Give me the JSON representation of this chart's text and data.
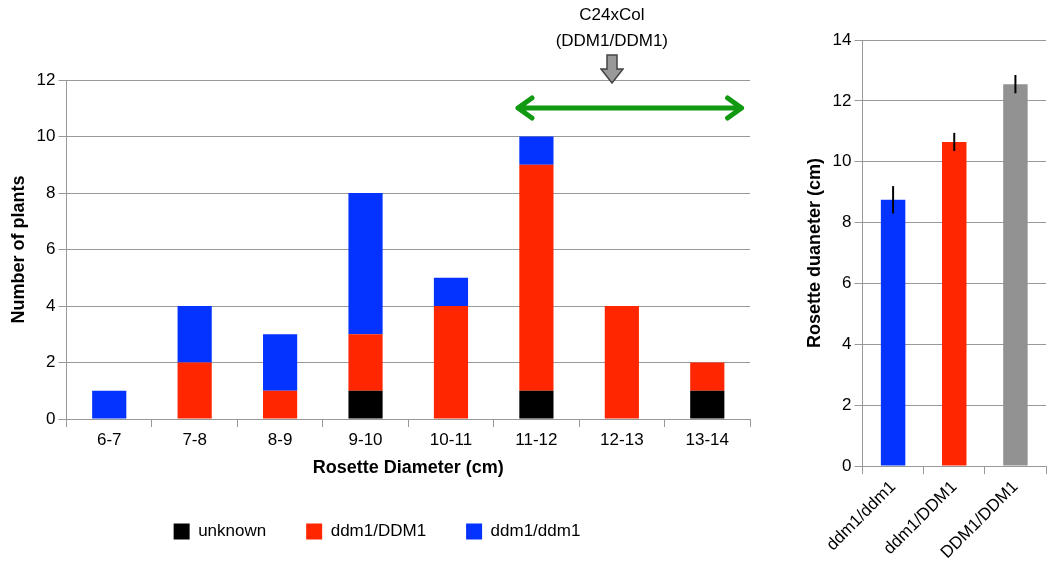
{
  "chart_data": [
    {
      "type": "bar",
      "stacked": true,
      "xlabel": "Rosette Diameter (cm)",
      "ylabel": "Number of plants",
      "categories": [
        "6-7",
        "7-8",
        "8-9",
        "9-10",
        "10-11",
        "11-12",
        "12-13",
        "13-14"
      ],
      "series": [
        {
          "name": "unknown",
          "color": "#000000",
          "values": [
            0,
            0,
            0,
            1,
            0,
            1,
            0,
            1
          ]
        },
        {
          "name": "ddm1/DDM1",
          "color": "#ff2600",
          "values": [
            0,
            2,
            1,
            2,
            4,
            8,
            4,
            1
          ]
        },
        {
          "name": "ddm1/ddm1",
          "color": "#0433ff",
          "values": [
            1,
            2,
            2,
            5,
            1,
            1,
            0,
            0
          ]
        }
      ],
      "ylim": [
        0,
        12
      ],
      "yticks": [
        0,
        2,
        4,
        6,
        8,
        10,
        12
      ],
      "grid": "y",
      "legend": "bottom",
      "annotations": [
        "C24xCol (DDM1/DDM1)"
      ]
    },
    {
      "type": "bar",
      "ylabel": "Rosette duaneter (cm)",
      "categories": [
        "ddm1/ddm1",
        "ddm1/DDM1",
        "DDM1/DDM1"
      ],
      "values": [
        8.75,
        10.65,
        12.55
      ],
      "colors": [
        "#0433ff",
        "#ff2600",
        "#929292"
      ],
      "errors": [
        0.45,
        0.3,
        0.3
      ],
      "ylim": [
        0,
        14
      ],
      "yticks": [
        0,
        2,
        4,
        6,
        8,
        10,
        12,
        14
      ],
      "grid": "y",
      "legend": false
    }
  ]
}
